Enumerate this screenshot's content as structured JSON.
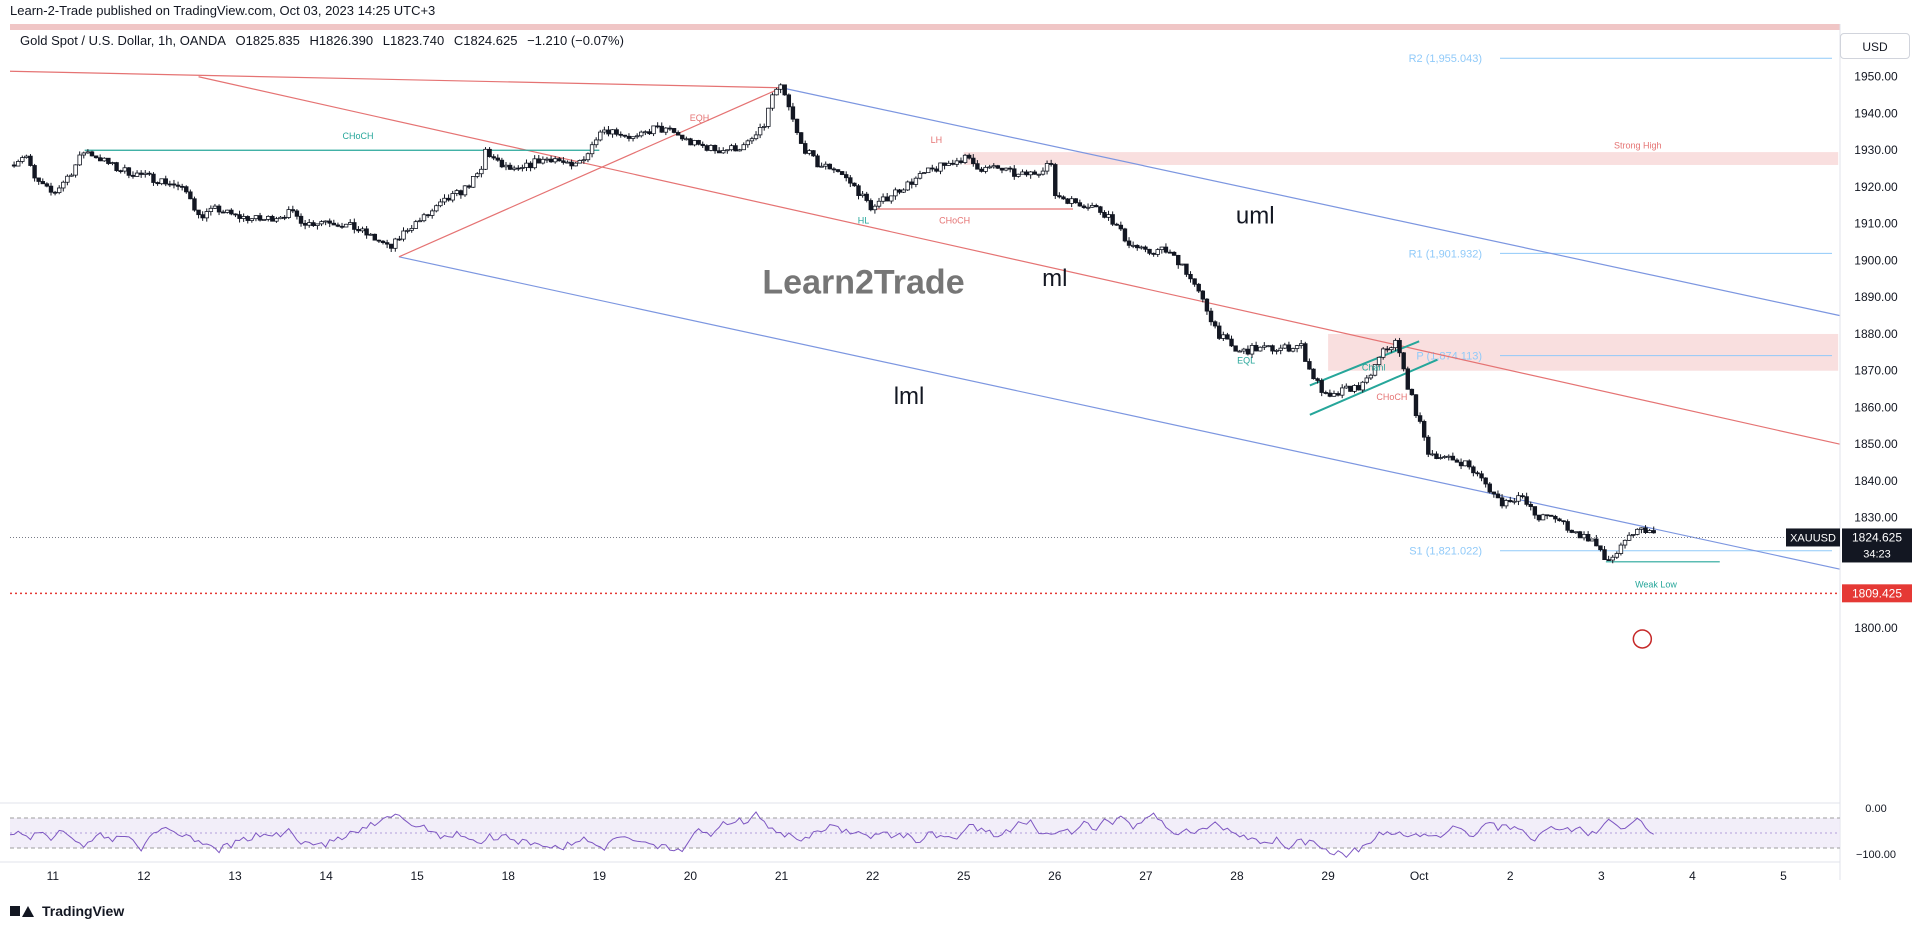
{
  "header": {
    "published": "Learn-2-Trade published on TradingView.com, Oct 03, 2023 14:25 UTC+3",
    "symbol_desc": "Gold Spot / U.S. Dollar, 1h, OANDA",
    "open": "O1825.835",
    "high": "H1826.390",
    "low": "L1823.740",
    "close": "C1824.625",
    "change": "−1.210 (−0.07%)",
    "currency": "USD"
  },
  "footer": {
    "brand": "TradingView"
  },
  "colors": {
    "candle": "#131722",
    "median_line": "#e57373",
    "channel_lines": "#7c96e0",
    "pivot_lines": "#90caf9",
    "green": "#26a69a",
    "red_zone": "#f8d7d7",
    "support_dot": "#e53935"
  },
  "chart_data": {
    "type": "candlestick",
    "instrument": "XAUUSD",
    "timeframe": "1h",
    "ylim": [
      1794,
      1960
    ],
    "y_ticks": [
      1800,
      1810,
      1820,
      1830,
      1840,
      1850,
      1860,
      1870,
      1880,
      1890,
      1900,
      1910,
      1920,
      1930,
      1940,
      1950
    ],
    "x_ticks": [
      {
        "label": "11",
        "x": 0
      },
      {
        "label": "12",
        "x": 1
      },
      {
        "label": "13",
        "x": 2
      },
      {
        "label": "14",
        "x": 3
      },
      {
        "label": "15",
        "x": 4
      },
      {
        "label": "18",
        "x": 5
      },
      {
        "label": "19",
        "x": 6
      },
      {
        "label": "20",
        "x": 7
      },
      {
        "label": "21",
        "x": 8
      },
      {
        "label": "22",
        "x": 9
      },
      {
        "label": "25",
        "x": 10
      },
      {
        "label": "26",
        "x": 11
      },
      {
        "label": "27",
        "x": 12
      },
      {
        "label": "28",
        "x": 13
      },
      {
        "label": "29",
        "x": 14
      },
      {
        "label": "Oct",
        "x": 15
      },
      {
        "label": "2",
        "x": 16
      },
      {
        "label": "3",
        "x": 17
      },
      {
        "label": "4",
        "x": 18
      },
      {
        "label": "5",
        "x": 19
      }
    ],
    "x_range": [
      -0.47,
      19.62
    ],
    "price_path": [
      [
        -0.47,
        1926
      ],
      [
        -0.3,
        1929
      ],
      [
        -0.2,
        1922
      ],
      [
        0,
        1918
      ],
      [
        0.2,
        1924
      ],
      [
        0.35,
        1930
      ],
      [
        0.5,
        1928
      ],
      [
        0.7,
        1925
      ],
      [
        1,
        1923
      ],
      [
        1.3,
        1921
      ],
      [
        1.5,
        1918
      ],
      [
        1.6,
        1912
      ],
      [
        1.8,
        1914
      ],
      [
        2,
        1912
      ],
      [
        2.3,
        1911
      ],
      [
        2.6,
        1913
      ],
      [
        2.8,
        1910
      ],
      [
        3,
        1911
      ],
      [
        3.3,
        1909
      ],
      [
        3.6,
        1905
      ],
      [
        3.7,
        1903
      ],
      [
        3.9,
        1909
      ],
      [
        4.1,
        1912
      ],
      [
        4.3,
        1916
      ],
      [
        4.5,
        1919
      ],
      [
        4.7,
        1924
      ],
      [
        4.75,
        1930
      ],
      [
        4.9,
        1926
      ],
      [
        5.1,
        1924
      ],
      [
        5.3,
        1927
      ],
      [
        5.5,
        1928
      ],
      [
        5.7,
        1925
      ],
      [
        5.9,
        1930
      ],
      [
        6.0,
        1936
      ],
      [
        6.2,
        1935
      ],
      [
        6.4,
        1933
      ],
      [
        6.6,
        1936
      ],
      [
        6.8,
        1935
      ],
      [
        7.0,
        1932
      ],
      [
        7.3,
        1930
      ],
      [
        7.6,
        1931
      ],
      [
        7.8,
        1936
      ],
      [
        7.9,
        1945
      ],
      [
        8.0,
        1947
      ],
      [
        8.1,
        1940
      ],
      [
        8.2,
        1932
      ],
      [
        8.4,
        1926
      ],
      [
        8.6,
        1925
      ],
      [
        8.8,
        1920
      ],
      [
        9.0,
        1914
      ],
      [
        9.2,
        1918
      ],
      [
        9.4,
        1921
      ],
      [
        9.6,
        1924
      ],
      [
        9.8,
        1926
      ],
      [
        10.0,
        1928
      ],
      [
        10.2,
        1925
      ],
      [
        10.4,
        1925
      ],
      [
        10.6,
        1923
      ],
      [
        10.8,
        1924
      ],
      [
        10.95,
        1927
      ],
      [
        11.0,
        1918
      ],
      [
        11.2,
        1916
      ],
      [
        11.4,
        1915
      ],
      [
        11.6,
        1912
      ],
      [
        11.8,
        1905
      ],
      [
        12.0,
        1902
      ],
      [
        12.2,
        1903
      ],
      [
        12.4,
        1899
      ],
      [
        12.6,
        1890
      ],
      [
        12.8,
        1880
      ],
      [
        13.0,
        1875
      ],
      [
        13.2,
        1876
      ],
      [
        13.5,
        1876
      ],
      [
        13.7,
        1877
      ],
      [
        13.8,
        1870
      ],
      [
        14.0,
        1862
      ],
      [
        14.2,
        1865
      ],
      [
        14.4,
        1866
      ],
      [
        14.6,
        1875
      ],
      [
        14.75,
        1878
      ],
      [
        14.85,
        1868
      ],
      [
        14.95,
        1860
      ],
      [
        15.1,
        1848
      ],
      [
        15.3,
        1846
      ],
      [
        15.5,
        1845
      ],
      [
        15.7,
        1840
      ],
      [
        15.9,
        1834
      ],
      [
        16.1,
        1836
      ],
      [
        16.3,
        1830
      ],
      [
        16.5,
        1830
      ],
      [
        16.7,
        1826
      ],
      [
        16.9,
        1824
      ],
      [
        17.05,
        1818
      ],
      [
        17.2,
        1821
      ],
      [
        17.35,
        1826
      ],
      [
        17.5,
        1827
      ],
      [
        17.6,
        1824.6
      ]
    ],
    "last_price": "1824.625",
    "last_price_countdown": "34:23",
    "support_level": "1809.425",
    "median_line": [
      [
        1.6,
        1950
      ],
      [
        19.62,
        1850
      ]
    ],
    "channel": {
      "upper": [
        [
          8.0,
          1947
        ],
        [
          19.62,
          1885
        ]
      ],
      "lower": [
        [
          3.8,
          1901
        ],
        [
          19.62,
          1816
        ]
      ],
      "top_left": [
        [
          -0.47,
          1951.5
        ],
        [
          8.0,
          1947
        ]
      ],
      "bottom_left": [
        [
          3.8,
          1901
        ],
        [
          8.0,
          1947
        ]
      ]
    },
    "pivots": [
      {
        "label": "R2 (1,955.043)",
        "value": 1955.043
      },
      {
        "label": "R1 (1,901.932)",
        "value": 1901.932
      },
      {
        "label": "P (1,874.113)",
        "value": 1874.113
      },
      {
        "label": "S1 (1,821.022)",
        "value": 1821.022
      }
    ],
    "zones": [
      {
        "name": "Strong High",
        "from": 1926,
        "to": 1929.5,
        "x_from": 10.0,
        "x_to": 19.6
      },
      {
        "name": "pivot zone",
        "from": 1870,
        "to": 1880,
        "x_from": 14.0,
        "x_to": 19.6
      }
    ],
    "annotations": [
      {
        "text": "CHoCH",
        "x": 3.35,
        "y": 1933
      },
      {
        "text": "EQH",
        "x": 7.1,
        "y": 1938
      },
      {
        "text": "LH",
        "x": 9.7,
        "y": 1932
      },
      {
        "text": "HL",
        "x": 8.9,
        "y": 1910
      },
      {
        "text": "CHoCH",
        "x": 9.9,
        "y": 1910
      },
      {
        "text": "Strong High",
        "x": 17.4,
        "y": 1930.5
      },
      {
        "text": "EQL",
        "x": 13.1,
        "y": 1872
      },
      {
        "text": "Chanl",
        "x": 14.5,
        "y": 1870
      },
      {
        "text": "CHoCH",
        "x": 14.7,
        "y": 1862
      },
      {
        "text": "Weak Low",
        "x": 17.6,
        "y": 1811
      },
      {
        "text": "uml",
        "x": 13.2,
        "y": 1910
      },
      {
        "text": "ml",
        "x": 11.0,
        "y": 1893
      },
      {
        "text": "lml",
        "x": 9.4,
        "y": 1861
      }
    ],
    "watermark": "Learn2Trade",
    "rsi": {
      "y_ticks": [
        "0.00",
        "−100.00"
      ],
      "upper_band": -20,
      "lower_band": -80
    }
  }
}
